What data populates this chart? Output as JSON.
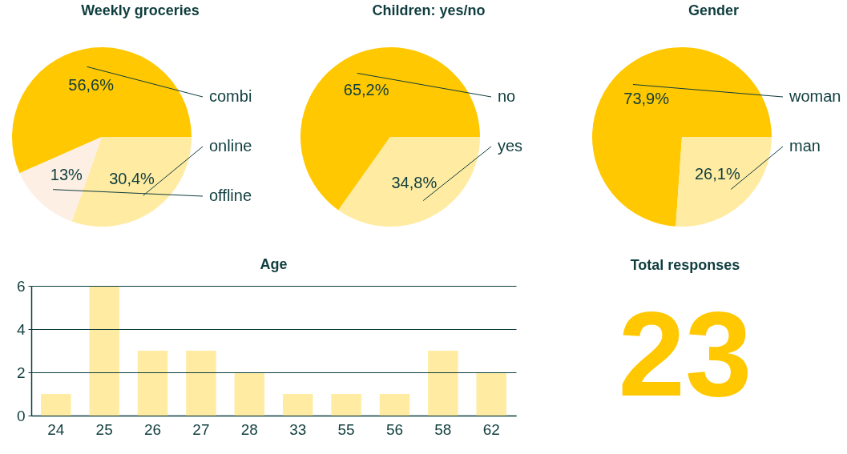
{
  "chart_data": [
    {
      "type": "pie",
      "title": "Weekly groceries",
      "categories": [
        "combi",
        "online",
        "offline"
      ],
      "values": [
        56.6,
        30.4,
        13
      ],
      "colors": [
        "#ffc800",
        "#ffeba2",
        "#fdefe3"
      ],
      "value_labels": [
        "56,6%",
        "30,4%",
        "13%"
      ]
    },
    {
      "type": "pie",
      "title": "Children: yes/no",
      "categories": [
        "no",
        "yes"
      ],
      "values": [
        65.2,
        34.8
      ],
      "colors": [
        "#ffc800",
        "#ffeba2"
      ],
      "value_labels": [
        "65,2%",
        "34,8%"
      ]
    },
    {
      "type": "pie",
      "title": "Gender",
      "categories": [
        "woman",
        "man"
      ],
      "values": [
        73.9,
        26.1
      ],
      "colors": [
        "#ffc800",
        "#ffeba2"
      ],
      "value_labels": [
        "73,9%",
        "26,1%"
      ]
    },
    {
      "type": "bar",
      "title": "Age",
      "categories": [
        "24",
        "25",
        "26",
        "27",
        "28",
        "33",
        "55",
        "56",
        "58",
        "62"
      ],
      "values": [
        1,
        6,
        3,
        3,
        2,
        1,
        1,
        1,
        3,
        2
      ],
      "color": "#ffeba2",
      "ylim": [
        0,
        6
      ],
      "yticks": [
        0,
        2,
        4,
        6
      ],
      "grid": "y"
    },
    {
      "type": "other",
      "title": "Total responses",
      "annotations": [
        "23"
      ]
    }
  ]
}
